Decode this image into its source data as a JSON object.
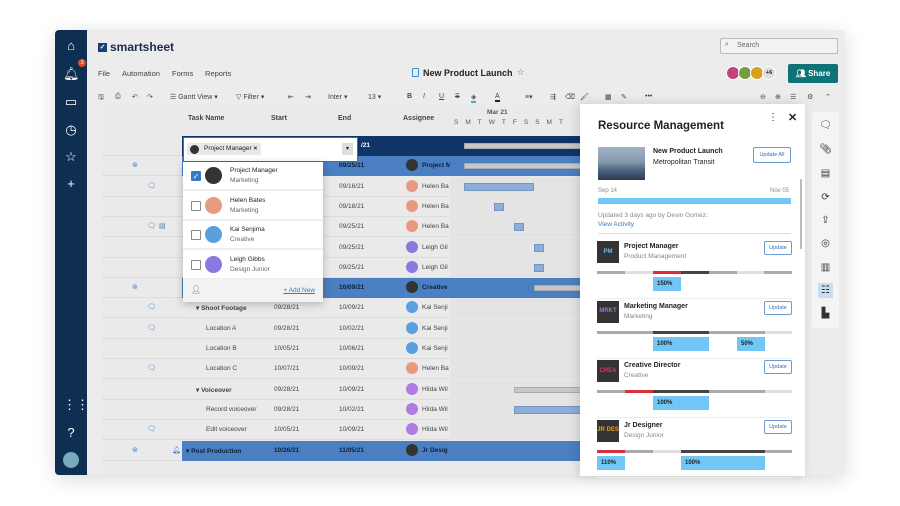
{
  "app": {
    "logo": "smartsheet",
    "search_placeholder": "Search",
    "notification_count": "3"
  },
  "menu": [
    "File",
    "Automation",
    "Forms",
    "Reports"
  ],
  "sheet_title": "New Product Launch",
  "collaborators_more": "+6",
  "share_label": "Share",
  "toolbar": {
    "view": "Gantt View",
    "filter": "Filter",
    "font": "Inter",
    "size": "13"
  },
  "columns": {
    "task": "Task Name",
    "start": "Start",
    "end": "End",
    "assignee": "Assignee"
  },
  "gantt": {
    "month": "Mar 21",
    "days": [
      "S",
      "M",
      "T",
      "W",
      "T",
      "F",
      "S",
      "S",
      "M",
      "T"
    ]
  },
  "rows": [
    {
      "task": "",
      "start": "",
      "end": "/21",
      "assignee": "",
      "type": "navy"
    },
    {
      "task": "",
      "start": "",
      "end": "09/25/21",
      "assignee": "Project M",
      "type": "blue",
      "icons": "attach"
    },
    {
      "task": "",
      "start": "",
      "end": "09/16/21",
      "assignee": "Helen Ba",
      "icons": "comment"
    },
    {
      "task": "",
      "start": "",
      "end": "09/18/21",
      "assignee": "Helen Ba"
    },
    {
      "task": "",
      "start": "",
      "end": "09/25/21",
      "assignee": "Helen Ba",
      "icons": "comment-print"
    },
    {
      "task": "",
      "start": "",
      "end": "09/25/21",
      "assignee": "Leigh Gil"
    },
    {
      "task": "",
      "start": "",
      "end": "09/25/21",
      "assignee": "Leigh Gil"
    },
    {
      "task": "",
      "start": "",
      "end": "10/09/21",
      "assignee": "Creative",
      "type": "blue",
      "icons": "attach"
    },
    {
      "task": "Shoot Footage",
      "start": "09/28/21",
      "end": "10/09/21",
      "assignee": "Kai Senji",
      "bold": true,
      "icons": "comment"
    },
    {
      "task": "Location A",
      "start": "09/28/21",
      "end": "10/02/21",
      "assignee": "Kai Senji",
      "indent": true,
      "icons": "comment"
    },
    {
      "task": "Location B",
      "start": "10/05/21",
      "end": "10/06/21",
      "assignee": "Kai Senji",
      "indent": true
    },
    {
      "task": "Location C",
      "start": "10/07/21",
      "end": "10/09/21",
      "assignee": "Helen Ba",
      "indent": true,
      "icons": "comment"
    },
    {
      "task": "Voiceover",
      "start": "09/28/21",
      "end": "10/09/21",
      "assignee": "Hilda Wil",
      "bold": true
    },
    {
      "task": "Record voiceover",
      "start": "09/28/21",
      "end": "10/02/21",
      "assignee": "Hilda Wil",
      "indent": true
    },
    {
      "task": "Edit voiceover",
      "start": "10/05/21",
      "end": "10/09/21",
      "assignee": "Hilda Wil",
      "indent": true,
      "icons": "comment"
    },
    {
      "task": "Post Production",
      "start": "10/26/21",
      "end": "11/05/21",
      "assignee": "Jr Desig",
      "type": "blue",
      "icons": "attach-bell"
    }
  ],
  "dropdown": {
    "chip": "Project Manager",
    "add_new": "+ Add New",
    "options": [
      {
        "name": "Project Manager",
        "sub": "Marketing",
        "checked": true
      },
      {
        "name": "Helen Bates",
        "sub": "Marketing",
        "checked": false
      },
      {
        "name": "Kai Senjima",
        "sub": "Creative",
        "checked": false
      },
      {
        "name": "Leigh Gibbs",
        "sub": "Design Junior",
        "checked": false
      }
    ]
  },
  "panel": {
    "title": "Resource Management",
    "project": "New Product Launch",
    "client": "Metropolitan Transit",
    "update_all": "Update All",
    "start": "Sep 14",
    "end": "Nov 05",
    "updated": "Updated 3 days ago by Devin Gomez.",
    "view_activity": "View Activity",
    "update": "Update",
    "resources": [
      {
        "abbr": "PM",
        "abbr_color": "#6fb8e8",
        "title": "Project Manager",
        "sub": "Product Management",
        "pcts": [
          "150%"
        ]
      },
      {
        "abbr": "MRKT",
        "abbr_color": "#b06be0",
        "title": "Marketing Manager",
        "sub": "Marketing",
        "pcts": [
          "100%",
          "50%"
        ]
      },
      {
        "abbr": "CREA",
        "abbr_color": "#e0307a",
        "title": "Creative Director",
        "sub": "Creative",
        "pcts": [
          "100%"
        ]
      },
      {
        "abbr": "JR DES",
        "abbr_color": "#e8a030",
        "title": "Jr Designer",
        "sub": "Design Junior",
        "pcts": [
          "110%",
          "100%"
        ]
      }
    ]
  },
  "colors": {
    "nav": "#0f2f52",
    "share": "#0d7377",
    "row_blue": "#4a7fc1",
    "allocation": "#70c7f5",
    "over": "#d9313a"
  }
}
